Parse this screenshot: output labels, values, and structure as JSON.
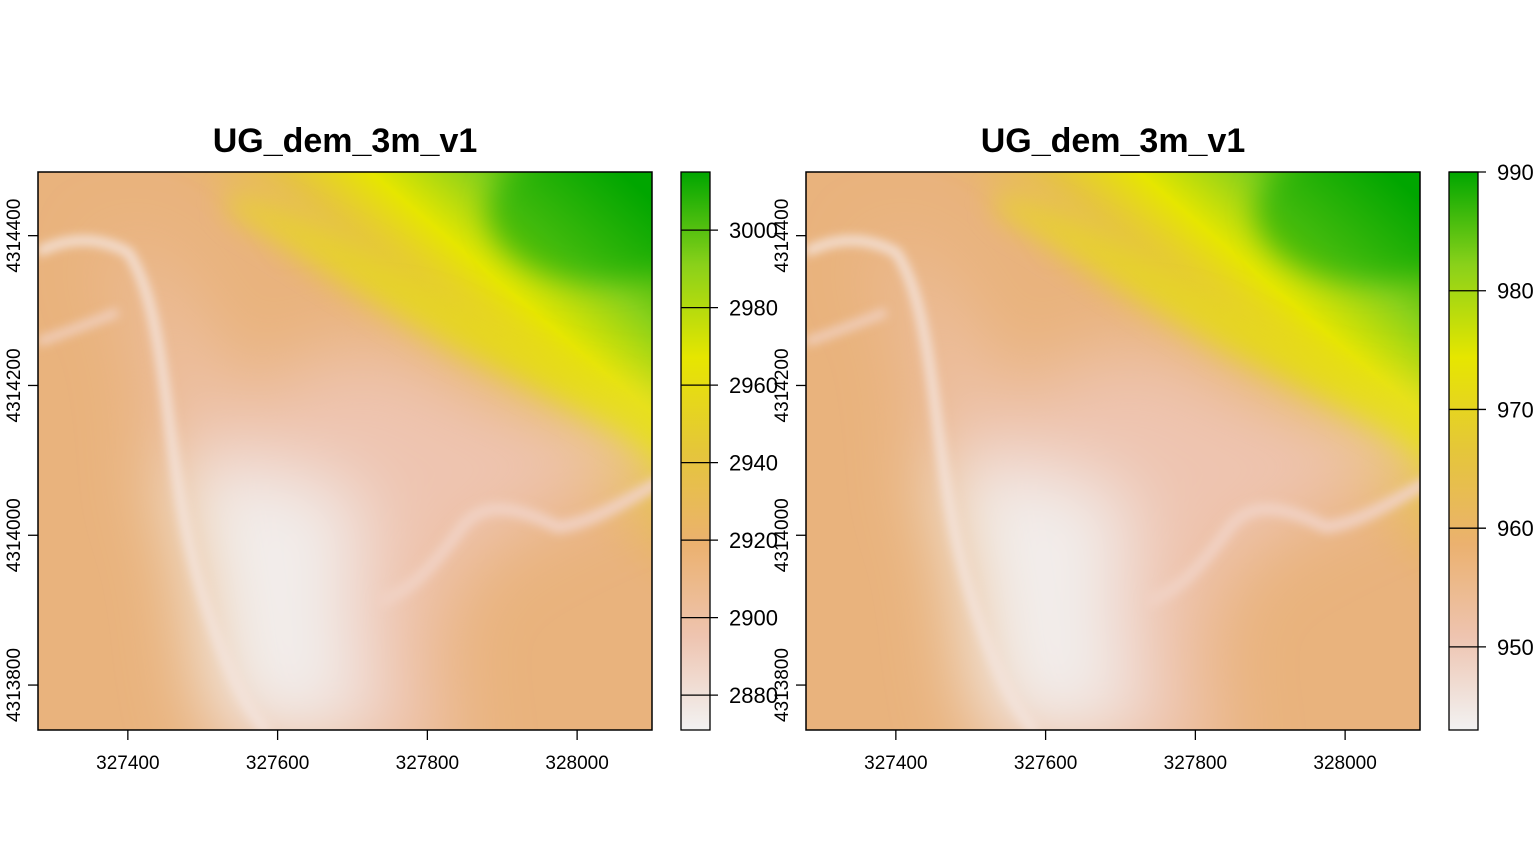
{
  "chart_data": [
    {
      "type": "heatmap",
      "title": "UG_dem_3m_v1",
      "xlabel": "",
      "ylabel": "",
      "x_ticks": [
        327400,
        327600,
        327800,
        328000
      ],
      "y_ticks": [
        4313800,
        4314000,
        4314200,
        4314400
      ],
      "xlim": [
        327280,
        328100
      ],
      "ylim": [
        4313740,
        4314485
      ],
      "legend": {
        "position": "right",
        "ticks": [
          2880,
          2900,
          2920,
          2940,
          2960,
          2980,
          3000
        ],
        "range": [
          2871,
          3015
        ]
      },
      "colormap": [
        "#f2f2f2",
        "#eec4b0",
        "#ebb16f",
        "#e5c63a",
        "#e6e600",
        "#8ad11a",
        "#00a600"
      ]
    },
    {
      "type": "heatmap",
      "title": "UG_dem_3m_v1",
      "xlabel": "",
      "ylabel": "",
      "x_ticks": [
        327400,
        327600,
        327800,
        328000
      ],
      "y_ticks": [
        4313800,
        4314000,
        4314200,
        4314400
      ],
      "xlim": [
        327280,
        328100
      ],
      "ylim": [
        4313740,
        4314485
      ],
      "legend": {
        "position": "right",
        "ticks": [
          950,
          960,
          970,
          980,
          990
        ],
        "range": [
          943,
          990
        ]
      },
      "colormap": [
        "#f2f2f2",
        "#eec4b0",
        "#ebb16f",
        "#e5c63a",
        "#e6e600",
        "#8ad11a",
        "#00a600"
      ]
    }
  ]
}
